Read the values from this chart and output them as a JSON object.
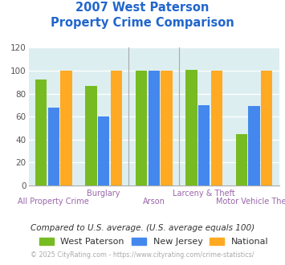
{
  "title_line1": "2007 West Paterson",
  "title_line2": "Property Crime Comparison",
  "title_color": "#2266cc",
  "groups": [
    {
      "label": "All Property Crime",
      "west_paterson": 92,
      "new_jersey": 68,
      "national": 100
    },
    {
      "label": "Burglary",
      "west_paterson": 87,
      "new_jersey": 60,
      "national": 100
    },
    {
      "label": "Arson",
      "west_paterson": 100,
      "new_jersey": 100,
      "national": 100
    },
    {
      "label": "Larceny & Theft",
      "west_paterson": 101,
      "new_jersey": 70,
      "national": 100
    },
    {
      "label": "Motor Vehicle Theft",
      "west_paterson": 45,
      "new_jersey": 69,
      "national": 100
    }
  ],
  "bar_colors": {
    "west_paterson": "#77bb22",
    "new_jersey": "#4488ee",
    "national": "#ffaa22"
  },
  "ylim": [
    0,
    120
  ],
  "yticks": [
    0,
    20,
    40,
    60,
    80,
    100,
    120
  ],
  "plot_bg": "#ddeef0",
  "fig_bg": "#ffffff",
  "legend_labels": [
    "West Paterson",
    "New Jersey",
    "National"
  ],
  "legend_text_color": "#333333",
  "note_text": "Compared to U.S. average. (U.S. average equals 100)",
  "note_color": "#333333",
  "footer_text": "© 2025 CityRating.com - https://www.cityrating.com/crime-statistics/",
  "footer_color": "#aaaaaa",
  "xlabel_color_top": "#9966aa",
  "xlabel_color_bottom": "#9966aa",
  "bar_width": 0.25,
  "row1_labels": [
    "",
    "Burglary",
    "",
    "Larceny & Theft",
    ""
  ],
  "row2_labels": [
    "All Property Crime",
    "",
    "Arson",
    "",
    "Motor Vehicle Theft"
  ]
}
